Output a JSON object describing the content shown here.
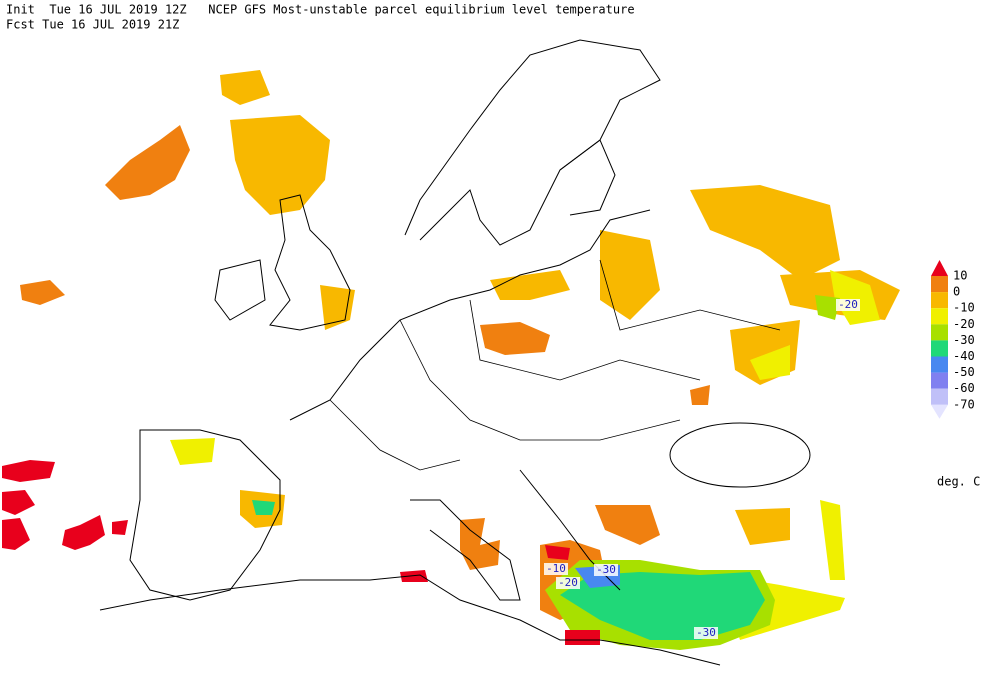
{
  "header": {
    "line1": "Init  Tue 16 JUL 2019 12Z   NCEP GFS Most-unstable parcel equilibrium level temperature",
    "line2": "Fcst Tue 16 JUL 2019 21Z"
  },
  "legend": {
    "labels": [
      10,
      0,
      -10,
      -20,
      -30,
      -40,
      -50,
      -60,
      -70
    ],
    "colors": [
      "#e8001c",
      "#f08010",
      "#f8b800",
      "#f0f000",
      "#a8e000",
      "#20d878",
      "#4888f0",
      "#8080f0",
      "#c0c0f8",
      "#e4e4ff"
    ],
    "units": "deg. C"
  },
  "contour_labels": [
    -20,
    -10,
    -30,
    -20,
    -30
  ]
}
